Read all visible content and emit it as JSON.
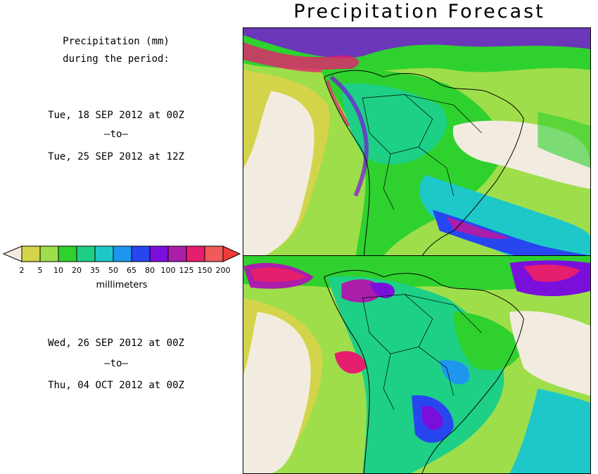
{
  "title": "Precipitation Forecast",
  "caption_line1": "Precipitation (mm)",
  "caption_line2": "during the period:",
  "period1": {
    "start": "Tue, 18 SEP 2012 at 00Z",
    "sep": "—to—",
    "end": "Tue, 25 SEP 2012 at 12Z"
  },
  "period2": {
    "start": "Wed, 26 SEP 2012 at 00Z",
    "sep": "—to—",
    "end": "Thu, 04 OCT 2012 at 00Z"
  },
  "legend": {
    "unit": "millimeters",
    "ticks": [
      "2",
      "5",
      "10",
      "20",
      "35",
      "50",
      "65",
      "80",
      "100",
      "125",
      "150",
      "200"
    ],
    "colors": [
      "#d4d44a",
      "#9fde4b",
      "#2fd12f",
      "#1ecf86",
      "#1ec8c8",
      "#1e96f0",
      "#2846f0",
      "#7a0fdc",
      "#aa1eaa",
      "#e61e6e",
      "#f05a5a",
      "#f03c3c"
    ],
    "below_color": "#f2ece0",
    "above_color": "#f03c3c"
  },
  "maps": [
    {
      "name": "week-1"
    },
    {
      "name": "week-2"
    }
  ]
}
